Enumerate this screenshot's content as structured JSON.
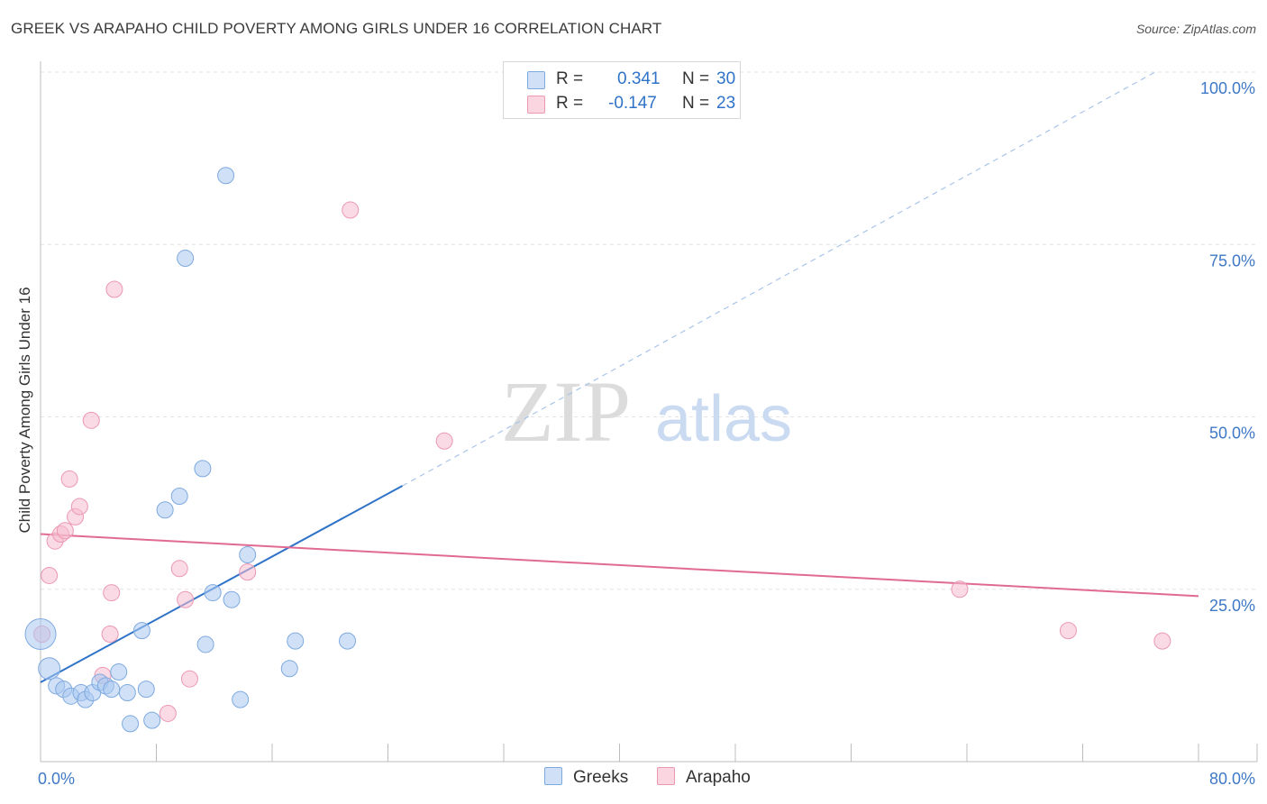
{
  "title": "GREEK VS ARAPAHO CHILD POVERTY AMONG GIRLS UNDER 16 CORRELATION CHART",
  "source": "Source: ZipAtlas.com",
  "watermark": {
    "zip": "ZIP",
    "atlas": "atlas"
  },
  "legend_top": {
    "rows": [
      {
        "r_label": "R =",
        "r_value": "0.341",
        "n_label": "N =",
        "n_value": "30",
        "color": "#a9c8f0",
        "border": "#7ea9df"
      },
      {
        "r_label": "R =",
        "r_value": "-0.147",
        "n_label": "N =",
        "n_value": "23",
        "color": "#f6bccd",
        "border": "#ec98b2"
      }
    ]
  },
  "legend_bottom": {
    "greeks": "Greeks",
    "arapaho": "Arapaho"
  },
  "chart_data": {
    "type": "scatter",
    "xlabel": "",
    "ylabel": "Child Poverty Among Girls Under 16",
    "xlim": [
      0,
      80
    ],
    "ylim": [
      0,
      100
    ],
    "x_tick_labels": [
      {
        "value": 0,
        "label": "0.0%"
      },
      {
        "value": 80,
        "label": "80.0%"
      }
    ],
    "y_tick_labels": [
      {
        "value": 25,
        "label": "25.0%"
      },
      {
        "value": 50,
        "label": "50.0%"
      },
      {
        "value": 75,
        "label": "75.0%"
      },
      {
        "value": 100,
        "label": "100.0%"
      }
    ],
    "grid": true,
    "legend_position": "top-center",
    "series": [
      {
        "name": "Greeks",
        "color": "#a9c8f0",
        "stroke": "#7ea9df",
        "line_color": "#2f73c9",
        "points": [
          [
            0.0,
            18.5
          ],
          [
            0.6,
            13.5
          ],
          [
            1.1,
            11.0
          ],
          [
            1.6,
            10.5
          ],
          [
            2.1,
            9.5
          ],
          [
            2.8,
            10.0
          ],
          [
            3.1,
            9.0
          ],
          [
            3.6,
            10.0
          ],
          [
            4.1,
            11.5
          ],
          [
            4.5,
            11.0
          ],
          [
            4.9,
            10.5
          ],
          [
            5.4,
            13.0
          ],
          [
            6.0,
            10.0
          ],
          [
            6.2,
            5.5
          ],
          [
            7.0,
            19.0
          ],
          [
            7.3,
            10.5
          ],
          [
            7.7,
            6.0
          ],
          [
            8.6,
            36.5
          ],
          [
            9.6,
            38.5
          ],
          [
            10.0,
            73.0
          ],
          [
            11.2,
            42.5
          ],
          [
            11.4,
            17.0
          ],
          [
            11.9,
            24.5
          ],
          [
            12.8,
            85.0
          ],
          [
            13.2,
            23.5
          ],
          [
            13.8,
            9.0
          ],
          [
            14.3,
            30.0
          ],
          [
            17.2,
            13.5
          ],
          [
            17.6,
            17.5
          ],
          [
            21.2,
            17.5
          ]
        ],
        "sizes": [
          34,
          24,
          18,
          18,
          18,
          18,
          18,
          18,
          18,
          18,
          18,
          18,
          18,
          18,
          18,
          18,
          18,
          18,
          18,
          18,
          18,
          18,
          18,
          18,
          18,
          18,
          18,
          18,
          18,
          18
        ],
        "trend": {
          "x": [
            0,
            25
          ],
          "y": [
            11.5,
            40.0
          ],
          "dashed_to": [
            77,
            100
          ]
        }
      },
      {
        "name": "Arapaho",
        "color": "#f6bccd",
        "stroke": "#ec98b2",
        "line_color": "#e06a93",
        "points": [
          [
            0.1,
            18.5
          ],
          [
            0.6,
            27.0
          ],
          [
            1.0,
            32.0
          ],
          [
            1.4,
            33.0
          ],
          [
            1.7,
            33.5
          ],
          [
            2.0,
            41.0
          ],
          [
            2.4,
            35.5
          ],
          [
            2.7,
            37.0
          ],
          [
            3.5,
            49.5
          ],
          [
            4.3,
            12.5
          ],
          [
            4.8,
            18.5
          ],
          [
            4.9,
            24.5
          ],
          [
            5.1,
            68.5
          ],
          [
            8.8,
            7.0
          ],
          [
            9.6,
            28.0
          ],
          [
            10.0,
            23.5
          ],
          [
            10.3,
            12.0
          ],
          [
            14.3,
            27.5
          ],
          [
            21.4,
            80.0
          ],
          [
            27.9,
            46.5
          ],
          [
            63.5,
            25.0
          ],
          [
            71.0,
            19.0
          ],
          [
            77.5,
            17.5
          ]
        ],
        "trend": {
          "x": [
            0,
            80
          ],
          "y": [
            33.0,
            24.0
          ]
        }
      }
    ]
  }
}
